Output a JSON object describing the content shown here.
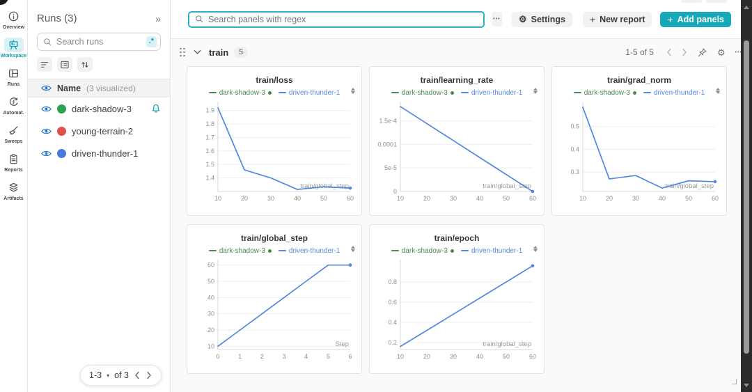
{
  "colors": {
    "accent_teal": "#18a9b8",
    "teal_bg_light": "#d9f1f4",
    "line_blue": "#5387dd",
    "legend_green": "#458a4f",
    "eye_blue": "#3179c7",
    "bell_teal": "#12a4b4"
  },
  "left_rail": {
    "items": [
      {
        "label": "Overview",
        "icon": "info-icon",
        "active": false
      },
      {
        "label": "Workspace",
        "icon": "workspace-icon",
        "active": true
      },
      {
        "label": "Runs",
        "icon": "runs-table-icon",
        "active": false
      },
      {
        "label": "Automat.",
        "icon": "automations-icon",
        "active": false
      },
      {
        "label": "Sweeps",
        "icon": "sweeps-broom-icon",
        "active": false
      },
      {
        "label": "Reports",
        "icon": "reports-clipboard-icon",
        "active": false
      },
      {
        "label": "Artifacts",
        "icon": "artifacts-layers-icon",
        "active": false
      }
    ]
  },
  "runs_panel": {
    "title": "Runs (3)",
    "collapse_glyph": "»",
    "search_placeholder": "Search runs",
    "regex_chip": ".*",
    "name_header": "Name",
    "visualized_note": "(3 visualized)",
    "runs": [
      {
        "name": "dark-shadow-3",
        "dot_color": "#2da44e",
        "bell": true
      },
      {
        "name": "young-terrain-2",
        "dot_color": "#e14f4f",
        "bell": false
      },
      {
        "name": "driven-thunder-1",
        "dot_color": "#4878d9",
        "bell": false
      }
    ],
    "pagination": {
      "range": "1-3",
      "of_label": "of 3"
    }
  },
  "toolbar": {
    "search_placeholder": "Search panels with regex",
    "more_label": "•••",
    "settings_label": "Settings",
    "new_report_label": "New report",
    "add_panels_label": "Add panels",
    "plus_glyph": "+"
  },
  "section": {
    "name": "train",
    "count": "5",
    "page_info": "1-5 of 5",
    "more_label": "•••"
  },
  "panel_legend": [
    {
      "name": "dark-shadow-3",
      "color": "#458a4f",
      "status_dot": true
    },
    {
      "name": "driven-thunder-1",
      "color": "#5387dd",
      "status_dot": false
    }
  ],
  "chart_data": [
    {
      "type": "line",
      "title": "train/loss",
      "inner_xlabel": "train/global_step",
      "xlim": [
        10,
        60
      ],
      "xticks": {
        "values": [
          10,
          20,
          30,
          40,
          50,
          60
        ],
        "labels": [
          "10",
          "20",
          "30",
          "40",
          "50",
          "60"
        ]
      },
      "ylim": [
        1.3,
        1.95
      ],
      "yticks": {
        "values": [
          1.4,
          1.5,
          1.6,
          1.7,
          1.8,
          1.9
        ],
        "labels": [
          "1.4",
          "1.5",
          "1.6",
          "1.7",
          "1.8",
          "1.9"
        ]
      },
      "grid": "horizontal",
      "series": [
        {
          "name": "driven-thunder-1",
          "color": "#5387dd",
          "end_dot": true,
          "points": [
            [
              10,
              1.92
            ],
            [
              20,
              1.46
            ],
            [
              30,
              1.4
            ],
            [
              40,
              1.315
            ],
            [
              50,
              1.335
            ],
            [
              60,
              1.325
            ]
          ]
        }
      ]
    },
    {
      "type": "line",
      "title": "train/learning_rate",
      "inner_xlabel": "train/global_step",
      "xlim": [
        10,
        60
      ],
      "xticks": {
        "values": [
          10,
          20,
          30,
          40,
          50,
          60
        ],
        "labels": [
          "10",
          "20",
          "30",
          "40",
          "50",
          "60"
        ]
      },
      "ylim": [
        0,
        0.000186
      ],
      "yticks": {
        "values": [
          0,
          5e-05,
          0.0001,
          0.00015
        ],
        "labels": [
          "0",
          "5e-5",
          "0.0001",
          "1.5e-4"
        ]
      },
      "grid": "horizontal",
      "series": [
        {
          "name": "driven-thunder-1",
          "color": "#5387dd",
          "end_dot": true,
          "points": [
            [
              10,
              0.00018
            ],
            [
              20,
              0.000144
            ],
            [
              30,
              0.000108
            ],
            [
              40,
              7.2e-05
            ],
            [
              50,
              3.6e-05
            ],
            [
              60,
              0
            ]
          ]
        }
      ]
    },
    {
      "type": "line",
      "title": "train/grad_norm",
      "inner_xlabel": "train/global_step",
      "xlim": [
        10,
        60
      ],
      "xticks": {
        "values": [
          10,
          20,
          30,
          40,
          50,
          60
        ],
        "labels": [
          "10",
          "20",
          "30",
          "40",
          "50",
          "60"
        ]
      },
      "ylim": [
        0.215,
        0.6
      ],
      "yticks": {
        "values": [
          0.3,
          0.4,
          0.5
        ],
        "labels": [
          "0.3",
          "0.4",
          "0.5"
        ]
      },
      "grid": "horizontal",
      "series": [
        {
          "name": "driven-thunder-1",
          "color": "#5387dd",
          "end_dot": true,
          "points": [
            [
              10,
              0.585
            ],
            [
              20,
              0.27
            ],
            [
              30,
              0.285
            ],
            [
              40,
              0.23
            ],
            [
              50,
              0.262
            ],
            [
              60,
              0.258
            ]
          ]
        }
      ]
    },
    {
      "type": "line",
      "title": "train/global_step",
      "inner_xlabel": "Step",
      "xlim": [
        0,
        6
      ],
      "xticks": {
        "values": [
          0,
          1,
          2,
          3,
          4,
          5,
          6
        ],
        "labels": [
          "0",
          "1",
          "2",
          "3",
          "4",
          "5",
          "6"
        ]
      },
      "ylim": [
        8,
        62
      ],
      "yticks": {
        "values": [
          10,
          20,
          30,
          40,
          50,
          60
        ],
        "labels": [
          "10",
          "20",
          "30",
          "40",
          "50",
          "60"
        ]
      },
      "grid": "horizontal",
      "series": [
        {
          "name": "driven-thunder-1",
          "color": "#5387dd",
          "end_dot": true,
          "points": [
            [
              0,
              10
            ],
            [
              1,
              20
            ],
            [
              2,
              30
            ],
            [
              3,
              40
            ],
            [
              4,
              50
            ],
            [
              5,
              60
            ],
            [
              6,
              60
            ]
          ]
        }
      ]
    },
    {
      "type": "line",
      "title": "train/epoch",
      "inner_xlabel": "train/global_step",
      "xlim": [
        10,
        60
      ],
      "xticks": {
        "values": [
          10,
          20,
          30,
          40,
          50,
          60
        ],
        "labels": [
          "10",
          "20",
          "30",
          "40",
          "50",
          "60"
        ]
      },
      "ylim": [
        0.13,
        1.0
      ],
      "yticks": {
        "values": [
          0.2,
          0.4,
          0.6,
          0.8
        ],
        "labels": [
          "0.2",
          "0.4",
          "0.6",
          "0.8"
        ]
      },
      "grid": "horizontal",
      "series": [
        {
          "name": "driven-thunder-1",
          "color": "#5387dd",
          "end_dot": true,
          "points": [
            [
              10,
              0.16
            ],
            [
              20,
              0.32
            ],
            [
              30,
              0.48
            ],
            [
              40,
              0.64
            ],
            [
              50,
              0.8
            ],
            [
              60,
              0.96
            ]
          ]
        }
      ]
    }
  ]
}
